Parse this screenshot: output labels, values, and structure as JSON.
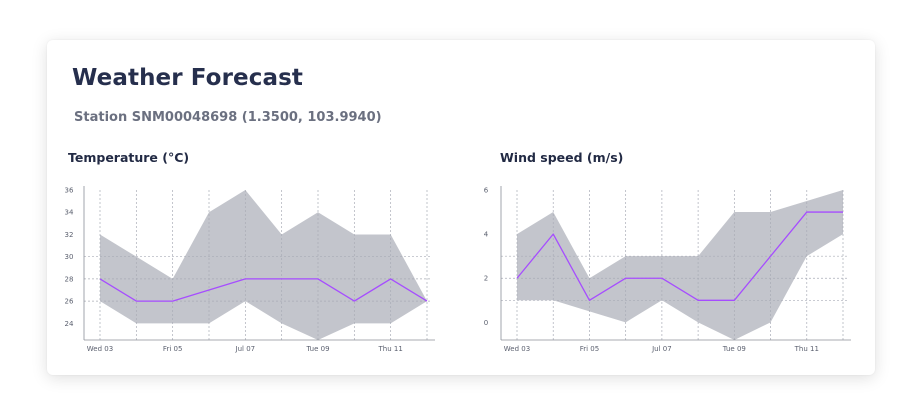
{
  "card": {
    "title": "Weather Forecast",
    "subtitle": "Station SNM00048698 (1.3500, 103.9940)"
  },
  "chart_data": [
    {
      "type": "area",
      "title": "Temperature (°C)",
      "x_tick_labels": [
        "Wed 03",
        "Fri 05",
        "Jul 07",
        "Tue 09",
        "Thu 11"
      ],
      "x": [
        "Jul 03 00:00",
        "Jul 04 00:00",
        "Jul 05 00:00",
        "Jul 06 00:00",
        "Jul 07 00:00",
        "Jul 08 00:00",
        "Jul 09 00:00",
        "Jul 10 00:00",
        "Jul 11 00:00",
        "Jul 12 00:00"
      ],
      "series": [
        {
          "role": "max",
          "values": [
            32,
            30,
            28,
            34,
            36,
            32,
            34,
            32,
            32,
            26
          ]
        },
        {
          "role": "mean",
          "values": [
            28,
            26,
            26,
            27,
            28,
            28,
            28,
            26,
            28,
            26
          ]
        },
        {
          "role": "min",
          "values": [
            26,
            24,
            24,
            24,
            26,
            24,
            22.5,
            24,
            24,
            26
          ]
        }
      ],
      "ylim": [
        22.5,
        36
      ],
      "y_ticks": [
        24,
        26,
        28,
        30,
        32,
        34,
        36
      ],
      "grid": true,
      "colors": {
        "band": "#c3c5cc",
        "line": "#a64dff",
        "grid": "#a9acb6"
      }
    },
    {
      "type": "area",
      "title": "Wind speed (m/s)",
      "x_tick_labels": [
        "Wed 03",
        "Fri 05",
        "Jul 07",
        "Tue 09",
        "Thu 11"
      ],
      "x": [
        "Jul 03 00:00",
        "Jul 04 00:00",
        "Jul 05 00:00",
        "Jul 06 00:00",
        "Jul 07 00:00",
        "Jul 08 00:00",
        "Jul 09 00:00",
        "Jul 10 00:00",
        "Jul 11 00:00",
        "Jul 12 00:00"
      ],
      "series": [
        {
          "role": "max",
          "values": [
            4,
            5,
            2,
            3,
            3,
            3,
            5,
            5,
            5.5,
            6
          ]
        },
        {
          "role": "mean",
          "values": [
            2,
            4,
            1,
            2,
            2,
            1,
            1,
            3,
            5,
            5
          ]
        },
        {
          "role": "min",
          "values": [
            1,
            1,
            0.5,
            0,
            1,
            0,
            -0.8,
            0,
            3,
            4
          ]
        }
      ],
      "ylim": [
        -0.8,
        6
      ],
      "y_ticks": [
        0,
        2,
        4,
        6
      ],
      "grid": true,
      "colors": {
        "band": "#c3c5cc",
        "line": "#a64dff",
        "grid": "#a9acb6"
      }
    }
  ]
}
